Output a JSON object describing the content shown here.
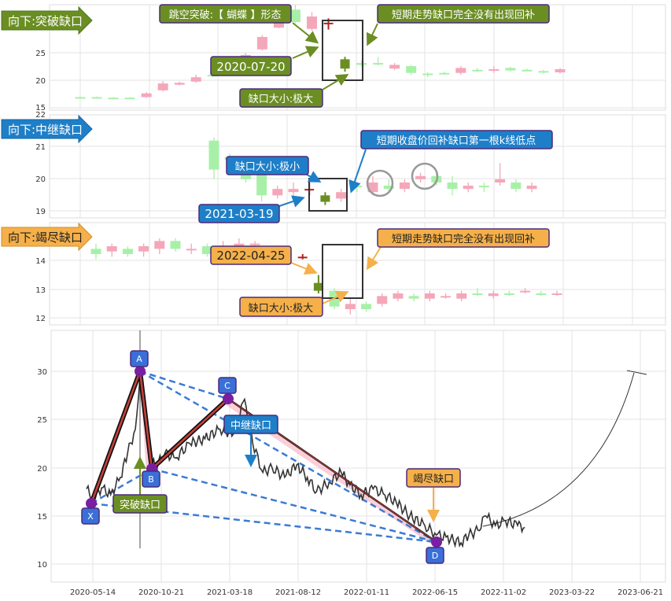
{
  "colors": {
    "up": "#f4a7b9",
    "down": "#a8f0a8",
    "gap_up": "#b22222",
    "gap_down": "#6b8e23",
    "green_box": "#6b8e23",
    "blue_box": "#1e7fc8",
    "orange_box": "#f5b04a",
    "border": "#4b2a7a"
  },
  "chart_data": [
    {
      "type": "candlestick",
      "panel": "top",
      "tag": "向下:突破缺口",
      "ylim": [
        15,
        32
      ],
      "yticks": [
        "15",
        "20",
        "25"
      ],
      "annotations": [
        "跳空突破:【 蝴蝶 】形态",
        "2020-07-20",
        "缺口大小:极大",
        "短期走势缺口完全没有出现回补"
      ],
      "candles": [
        {
          "o": 17.0,
          "c": 17.1,
          "h": 17.2,
          "l": 16.9,
          "u": 0
        },
        {
          "o": 17.1,
          "c": 17.0,
          "h": 17.2,
          "l": 16.9,
          "u": 0
        },
        {
          "o": 17.0,
          "c": 16.9,
          "h": 17.1,
          "l": 16.8,
          "u": 0
        },
        {
          "o": 16.9,
          "c": 17.0,
          "h": 17.1,
          "l": 16.8,
          "u": 0
        },
        {
          "o": 17.1,
          "c": 17.7,
          "h": 17.9,
          "l": 17.0,
          "u": 1
        },
        {
          "o": 18.2,
          "c": 19.3,
          "h": 19.7,
          "l": 18.0,
          "u": 1
        },
        {
          "o": 19.1,
          "c": 19.4,
          "h": 19.6,
          "l": 19.0,
          "u": 1
        },
        {
          "o": 19.6,
          "c": 20.3,
          "h": 20.7,
          "l": 19.4,
          "u": 1
        },
        {
          "o": 20.7,
          "c": 20.5,
          "h": 21.0,
          "l": 20.3,
          "u": 0
        },
        {
          "o": 20.9,
          "c": 21.8,
          "h": 22.1,
          "l": 20.8,
          "u": 1
        },
        {
          "o": 22.4,
          "c": 23.9,
          "h": 24.2,
          "l": 22.2,
          "u": 1
        },
        {
          "o": 24.8,
          "c": 26.8,
          "h": 27.1,
          "l": 24.6,
          "u": 1
        },
        {
          "o": 28.3,
          "c": 29.3,
          "h": 29.8,
          "l": 28.2,
          "u": 1
        },
        {
          "o": 29.2,
          "c": 31.2,
          "h": 32.0,
          "l": 29.0,
          "u": 0
        },
        {
          "o": 28.1,
          "c": 30.1,
          "h": 30.8,
          "l": 27.8,
          "u": 1
        },
        {
          "o": 29.0,
          "c": 29.1,
          "h": 29.8,
          "l": 28.0,
          "gap": "hi"
        },
        {
          "o": 23.2,
          "c": 21.7,
          "h": 23.6,
          "l": 21.2,
          "gap": "lo"
        },
        {
          "o": 22.3,
          "c": 22.6,
          "h": 23.0,
          "l": 22.1,
          "u": 0
        },
        {
          "o": 22.6,
          "c": 22.5,
          "h": 23.6,
          "l": 22.2,
          "u": 0
        },
        {
          "o": 21.7,
          "c": 22.3,
          "h": 22.6,
          "l": 21.5,
          "u": 1
        },
        {
          "o": 22.1,
          "c": 21.0,
          "h": 22.3,
          "l": 20.7,
          "u": 0
        },
        {
          "o": 20.9,
          "c": 20.8,
          "h": 21.1,
          "l": 20.3,
          "u": 0
        },
        {
          "o": 20.9,
          "c": 21.0,
          "h": 21.2,
          "l": 20.7,
          "u": 0
        },
        {
          "o": 21.0,
          "c": 21.8,
          "h": 22.1,
          "l": 20.7,
          "u": 1
        },
        {
          "o": 21.5,
          "c": 21.4,
          "h": 21.8,
          "l": 21.1,
          "u": 0
        },
        {
          "o": 21.5,
          "c": 21.6,
          "h": 22.1,
          "l": 21.0,
          "u": 1
        },
        {
          "o": 21.4,
          "c": 21.8,
          "h": 22.0,
          "l": 21.2,
          "u": 0
        },
        {
          "o": 21.5,
          "c": 21.4,
          "h": 21.7,
          "l": 21.3,
          "u": 0
        },
        {
          "o": 21.3,
          "c": 21.1,
          "h": 21.5,
          "l": 20.9,
          "u": 0
        },
        {
          "o": 21.1,
          "c": 21.6,
          "h": 21.8,
          "l": 20.9,
          "u": 1
        }
      ]
    },
    {
      "type": "candlestick",
      "panel": "mid",
      "tag": "向下:中继缺口",
      "ylim": [
        18.8,
        22
      ],
      "yticks": [
        "19",
        "20",
        "21",
        "22"
      ],
      "annotations": [
        "缺口大小:极小",
        "短期收盘价回补缺口第一根k线低点",
        "2021-03-19"
      ],
      "candles": [
        {
          "o": 21.2,
          "c": 20.3,
          "h": 21.3,
          "l": 20.0,
          "u": 0
        },
        {
          "o": 20.7,
          "c": 20.6,
          "h": 20.8,
          "l": 20.5,
          "u": 0
        },
        {
          "o": 20.5,
          "c": 20.0,
          "h": 20.6,
          "l": 19.9,
          "u": 0
        },
        {
          "o": 20.3,
          "c": 19.5,
          "h": 20.4,
          "l": 19.3,
          "u": 0
        },
        {
          "o": 19.5,
          "c": 19.7,
          "h": 19.8,
          "l": 19.4,
          "u": 1
        },
        {
          "o": 19.6,
          "c": 19.7,
          "h": 19.9,
          "l": 19.5,
          "u": 1
        },
        {
          "o": 19.7,
          "c": 19.7,
          "h": 19.9,
          "l": 19.5,
          "gap": "hi"
        },
        {
          "o": 19.5,
          "c": 19.3,
          "h": 19.6,
          "l": 19.2,
          "gap": "lo"
        },
        {
          "o": 19.4,
          "c": 19.6,
          "h": 19.7,
          "l": 19.3,
          "u": 1
        },
        {
          "o": 19.8,
          "c": 19.8,
          "h": 19.9,
          "l": 19.6,
          "u": 0
        },
        {
          "o": 19.6,
          "c": 19.9,
          "h": 20.1,
          "l": 19.5,
          "u": 1
        },
        {
          "o": 19.8,
          "c": 19.7,
          "h": 20.0,
          "l": 19.6,
          "u": 0
        },
        {
          "o": 19.7,
          "c": 19.9,
          "h": 20.0,
          "l": 19.6,
          "u": 1
        },
        {
          "o": 20.0,
          "c": 20.1,
          "h": 20.2,
          "l": 19.9,
          "u": 1
        },
        {
          "o": 20.1,
          "c": 19.9,
          "h": 20.2,
          "l": 19.8,
          "u": 0
        },
        {
          "o": 19.9,
          "c": 19.7,
          "h": 20.1,
          "l": 19.5,
          "u": 0
        },
        {
          "o": 19.7,
          "c": 19.8,
          "h": 19.9,
          "l": 19.6,
          "u": 1
        },
        {
          "o": 19.8,
          "c": 19.8,
          "h": 19.9,
          "l": 19.6,
          "u": 0
        },
        {
          "o": 19.9,
          "c": 20.0,
          "h": 20.5,
          "l": 19.8,
          "u": 1
        },
        {
          "o": 19.9,
          "c": 19.7,
          "h": 20.0,
          "l": 19.6,
          "u": 0
        },
        {
          "o": 19.7,
          "c": 19.8,
          "h": 19.9,
          "l": 19.6,
          "u": 1
        }
      ]
    },
    {
      "type": "candlestick",
      "panel": "low",
      "tag": "向下:竭尽缺口",
      "ylim": [
        11.7,
        15.6
      ],
      "yticks": [
        "12",
        "13",
        "14"
      ],
      "annotations": [
        "2022-04-25",
        "短期走势缺口完全没有出现回补",
        "缺口大小:极大"
      ],
      "candles": [
        {
          "o": 14.6,
          "c": 14.4,
          "h": 14.8,
          "l": 14.2,
          "u": 0
        },
        {
          "o": 14.5,
          "c": 14.7,
          "h": 14.8,
          "l": 14.3,
          "u": 1
        },
        {
          "o": 14.6,
          "c": 14.4,
          "h": 14.7,
          "l": 14.3,
          "u": 0
        },
        {
          "o": 14.5,
          "c": 14.7,
          "h": 14.8,
          "l": 14.3,
          "u": 1
        },
        {
          "o": 14.6,
          "c": 14.9,
          "h": 15.0,
          "l": 14.4,
          "u": 1
        },
        {
          "o": 14.9,
          "c": 14.6,
          "h": 15.0,
          "l": 14.5,
          "u": 0
        },
        {
          "o": 14.6,
          "c": 14.6,
          "h": 14.8,
          "l": 14.4,
          "u": 1
        },
        {
          "o": 14.7,
          "c": 14.4,
          "h": 14.8,
          "l": 14.3,
          "u": 0
        },
        {
          "o": 14.6,
          "c": 14.7,
          "h": 14.9,
          "l": 14.5,
          "u": 1
        },
        {
          "o": 14.7,
          "c": 14.8,
          "h": 15.0,
          "l": 14.6,
          "u": 1
        },
        {
          "o": 14.8,
          "c": 14.8,
          "h": 14.9,
          "l": 14.5,
          "u": 1
        },
        {
          "o": 14.6,
          "c": 14.5,
          "h": 14.7,
          "l": 14.3,
          "u": 0
        },
        {
          "o": 14.4,
          "c": 14.4,
          "h": 14.6,
          "l": 14.2,
          "u": 1
        },
        {
          "o": 14.3,
          "c": 14.3,
          "h": 14.4,
          "l": 14.2,
          "gap": "hi"
        },
        {
          "o": 13.0,
          "c": 13.3,
          "h": 13.6,
          "l": 12.9,
          "gap": "lo"
        },
        {
          "o": 13.0,
          "c": 12.4,
          "h": 13.1,
          "l": 12.3,
          "u": 0
        },
        {
          "o": 12.3,
          "c": 12.5,
          "h": 12.7,
          "l": 12.1,
          "u": 1
        },
        {
          "o": 12.5,
          "c": 12.3,
          "h": 12.6,
          "l": 12.2,
          "u": 0
        },
        {
          "o": 12.5,
          "c": 12.8,
          "h": 12.9,
          "l": 12.4,
          "u": 1
        },
        {
          "o": 12.7,
          "c": 12.9,
          "h": 13.0,
          "l": 12.6,
          "u": 1
        },
        {
          "o": 12.8,
          "c": 12.7,
          "h": 12.9,
          "l": 12.6,
          "u": 0
        },
        {
          "o": 12.7,
          "c": 12.9,
          "h": 13.0,
          "l": 12.6,
          "u": 1
        },
        {
          "o": 12.8,
          "c": 12.8,
          "h": 12.9,
          "l": 12.7,
          "u": 1
        },
        {
          "o": 12.7,
          "c": 12.9,
          "h": 13.0,
          "l": 12.6,
          "u": 1
        },
        {
          "o": 12.9,
          "c": 12.9,
          "h": 13.1,
          "l": 12.8,
          "u": 0
        },
        {
          "o": 12.8,
          "c": 12.9,
          "h": 13.0,
          "l": 12.7,
          "u": 1
        },
        {
          "o": 12.9,
          "c": 12.9,
          "h": 13.0,
          "l": 12.8,
          "u": 0
        },
        {
          "o": 13.0,
          "c": 13.0,
          "h": 13.1,
          "l": 12.9,
          "u": 1
        },
        {
          "o": 12.9,
          "c": 12.9,
          "h": 13.0,
          "l": 12.8,
          "u": 0
        },
        {
          "o": 12.9,
          "c": 12.9,
          "h": 13.0,
          "l": 12.8,
          "u": 1
        }
      ]
    },
    {
      "type": "line",
      "panel": "bottom",
      "xlabels": [
        "2020-05-14",
        "2020-10-21",
        "2021-03-18",
        "2021-08-12",
        "2022-01-11",
        "2022-06-15",
        "2022-11-02",
        "2023-03-22",
        "2023-06-21"
      ],
      "yticks": [
        "10",
        "15",
        "20",
        "25",
        "30"
      ],
      "ylim": [
        8,
        34
      ],
      "points": [
        {
          "name": "A",
          "date": "2020-08-20",
          "y": 29.8
        },
        {
          "name": "B",
          "date": "2020-09-20",
          "y": 20.0
        },
        {
          "name": "C",
          "date": "2021-03-24",
          "y": 27.1
        },
        {
          "name": "D",
          "date": "2022-06-15",
          "y": 12.2
        },
        {
          "name": "X",
          "date": "2020-05-20",
          "y": 16.3
        }
      ],
      "gap_labels": [
        "突破缺口",
        "中继缺口",
        "竭尽缺口"
      ],
      "price_series": [
        {
          "d": "2020-05-01",
          "v": 17.8
        },
        {
          "d": "2020-05-14",
          "v": 16.8
        },
        {
          "d": "2020-06-01",
          "v": 17.9
        },
        {
          "d": "2020-06-20",
          "v": 17.2
        },
        {
          "d": "2020-07-10",
          "v": 19.0
        },
        {
          "d": "2020-07-25",
          "v": 21.5
        },
        {
          "d": "2020-08-10",
          "v": 24.0
        },
        {
          "d": "2020-08-20",
          "v": 29.8
        },
        {
          "d": "2020-09-05",
          "v": 22.0
        },
        {
          "d": "2020-09-20",
          "v": 20.0
        },
        {
          "d": "2020-10-10",
          "v": 21.5
        },
        {
          "d": "2020-11-01",
          "v": 21.0
        },
        {
          "d": "2020-12-01",
          "v": 22.5
        },
        {
          "d": "2021-01-01",
          "v": 23.0
        },
        {
          "d": "2021-02-01",
          "v": 24.0
        },
        {
          "d": "2021-03-01",
          "v": 23.5
        },
        {
          "d": "2021-03-24",
          "v": 27.1
        },
        {
          "d": "2021-04-10",
          "v": 22.5
        },
        {
          "d": "2021-05-01",
          "v": 19.5
        },
        {
          "d": "2021-05-20",
          "v": 20.0
        },
        {
          "d": "2021-06-15",
          "v": 19.0
        },
        {
          "d": "2021-07-10",
          "v": 20.3
        },
        {
          "d": "2021-08-01",
          "v": 19.0
        },
        {
          "d": "2021-08-20",
          "v": 17.5
        },
        {
          "d": "2021-09-15",
          "v": 18.5
        },
        {
          "d": "2021-10-10",
          "v": 19.5
        },
        {
          "d": "2021-10-28",
          "v": 18.2
        },
        {
          "d": "2021-11-20",
          "v": 17.2
        },
        {
          "d": "2021-12-15",
          "v": 17.8
        },
        {
          "d": "2022-01-05",
          "v": 17.3
        },
        {
          "d": "2022-02-01",
          "v": 16.4
        },
        {
          "d": "2022-03-01",
          "v": 15.0
        },
        {
          "d": "2022-04-01",
          "v": 14.0
        },
        {
          "d": "2022-04-25",
          "v": 13.0
        },
        {
          "d": "2022-05-15",
          "v": 12.8
        },
        {
          "d": "2022-06-15",
          "v": 12.2
        },
        {
          "d": "2022-07-01",
          "v": 13.0
        },
        {
          "d": "2022-07-20",
          "v": 13.5
        },
        {
          "d": "2022-08-05",
          "v": 15.0
        },
        {
          "d": "2022-08-25",
          "v": 14.0
        },
        {
          "d": "2022-09-15",
          "v": 14.5
        },
        {
          "d": "2022-10-10",
          "v": 14.0
        },
        {
          "d": "2022-10-25",
          "v": 13.8
        }
      ]
    }
  ]
}
